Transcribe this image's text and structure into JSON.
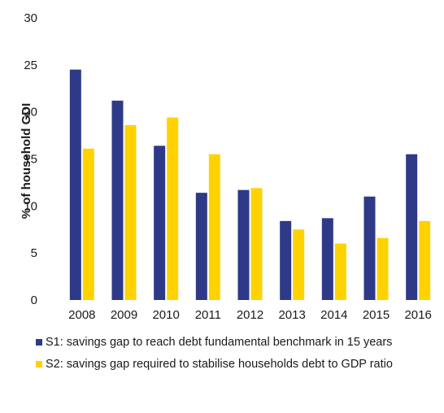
{
  "chart_data": {
    "type": "bar",
    "categories": [
      "2008",
      "2009",
      "2010",
      "2011",
      "2012",
      "2013",
      "2014",
      "2015",
      "2016"
    ],
    "series": [
      {
        "name": "S1: savings gap to reach debt fundamental benchmark in 15 years",
        "values": [
          24.5,
          21.2,
          16.4,
          11.4,
          11.7,
          8.4,
          8.7,
          11.0,
          15.5
        ],
        "color": "#2e3a87"
      },
      {
        "name": "S2: savings gap required to stabilise households debt to GDP ratio",
        "values": [
          16.1,
          18.6,
          19.4,
          15.5,
          11.9,
          7.5,
          6.0,
          6.6,
          8.4
        ],
        "color": "#ffd200"
      }
    ],
    "title": "",
    "xlabel": "",
    "ylabel": "% of household GDI",
    "ylim": [
      0,
      30
    ],
    "yticks": [
      "0",
      "5",
      "10",
      "15",
      "20",
      "25",
      "30"
    ],
    "grid": false,
    "legend_position": "bottom"
  }
}
